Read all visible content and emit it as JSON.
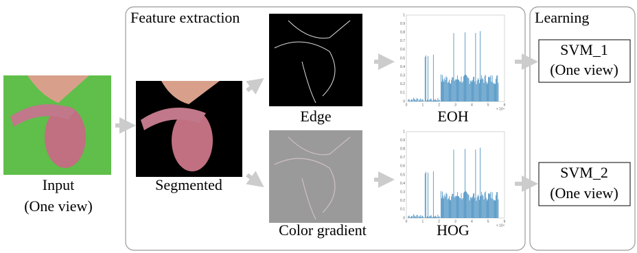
{
  "input": {
    "label": "Input",
    "sublabel": "(One view)"
  },
  "feature_extraction": {
    "title": "Feature extraction",
    "segmented": "Segmented",
    "edge": "Edge",
    "color_gradient": "Color gradient",
    "eoh": {
      "label": "EOH",
      "yticks": [
        "0",
        "0.1",
        "0.2",
        "0.3",
        "0.4",
        "0.5",
        "0.6",
        "0.7",
        "0.8",
        "0.9",
        "1"
      ],
      "xticks": [
        "0",
        "1",
        "2",
        "3",
        "4",
        "5",
        "6"
      ],
      "x_multiplier": "× 10⁴"
    },
    "hog": {
      "label": "HOG",
      "yticks": [
        "0",
        "0.1",
        "0.2",
        "0.3",
        "0.4",
        "0.5",
        "0.6",
        "0.7",
        "0.8",
        "0.9",
        "1"
      ],
      "xticks": [
        "0",
        "1",
        "2",
        "3",
        "4",
        "5",
        "6"
      ],
      "x_multiplier": "× 10⁴"
    }
  },
  "learning": {
    "title": "Learning",
    "svm1": {
      "label": "SVM_1",
      "sublabel": "(One view)"
    },
    "svm2": {
      "label": "SVM_2",
      "sublabel": "(One view)"
    }
  }
}
